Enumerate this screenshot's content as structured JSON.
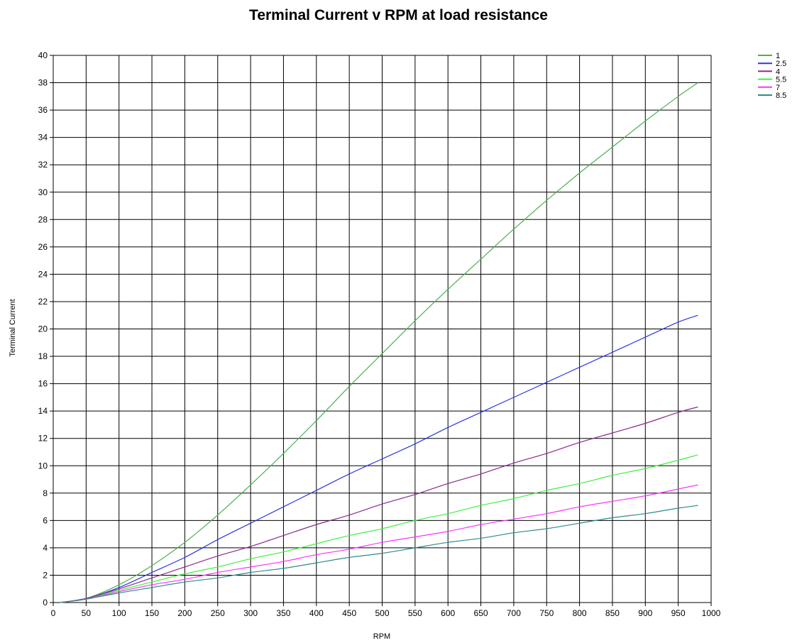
{
  "chart_data": {
    "type": "line",
    "title": "Terminal Current v RPM at load resistance",
    "xlabel": "RPM",
    "ylabel": "Terminal Current",
    "xlim": [
      0,
      1000
    ],
    "ylim": [
      0,
      40
    ],
    "xticks": [
      0,
      50,
      100,
      150,
      200,
      250,
      300,
      350,
      400,
      450,
      500,
      550,
      600,
      650,
      700,
      750,
      800,
      850,
      900,
      950,
      1000
    ],
    "yticks": [
      0,
      2,
      4,
      6,
      8,
      10,
      12,
      14,
      16,
      18,
      20,
      22,
      24,
      26,
      28,
      30,
      32,
      34,
      36,
      38,
      40
    ],
    "grid": true,
    "legend_position": "top-right",
    "x": [
      10,
      50,
      100,
      150,
      200,
      250,
      300,
      350,
      400,
      450,
      500,
      550,
      600,
      650,
      700,
      750,
      800,
      850,
      900,
      950,
      980
    ],
    "series": [
      {
        "name": "1",
        "color": "#4caf50",
        "values": [
          0.0,
          0.3,
          1.3,
          2.7,
          4.4,
          6.4,
          8.6,
          10.9,
          13.3,
          15.8,
          18.2,
          20.6,
          22.9,
          25.1,
          27.3,
          29.4,
          31.4,
          33.3,
          35.2,
          37.0,
          38.0
        ]
      },
      {
        "name": "2.5",
        "color": "#2b35e6",
        "values": [
          0.0,
          0.3,
          1.1,
          2.2,
          3.3,
          4.6,
          5.8,
          7.0,
          8.2,
          9.4,
          10.5,
          11.6,
          12.8,
          13.9,
          15.0,
          16.1,
          17.2,
          18.3,
          19.4,
          20.5,
          21.0
        ]
      },
      {
        "name": "4",
        "color": "#8b2a8b",
        "values": [
          0.0,
          0.3,
          1.0,
          1.8,
          2.6,
          3.4,
          4.1,
          4.9,
          5.7,
          6.4,
          7.2,
          7.9,
          8.7,
          9.4,
          10.2,
          10.9,
          11.7,
          12.4,
          13.1,
          13.9,
          14.3
        ]
      },
      {
        "name": "5.5",
        "color": "#3ef03e",
        "values": [
          0.0,
          0.25,
          0.9,
          1.5,
          2.1,
          2.6,
          3.2,
          3.7,
          4.3,
          4.9,
          5.4,
          6.0,
          6.5,
          7.1,
          7.6,
          8.2,
          8.7,
          9.3,
          9.8,
          10.4,
          10.8
        ]
      },
      {
        "name": "7",
        "color": "#ff33ff",
        "values": [
          0.0,
          0.25,
          0.8,
          1.3,
          1.7,
          2.2,
          2.6,
          3.0,
          3.5,
          3.9,
          4.4,
          4.8,
          5.2,
          5.7,
          6.1,
          6.5,
          7.0,
          7.4,
          7.8,
          8.3,
          8.6
        ]
      },
      {
        "name": "8.5",
        "color": "#2e8b8b",
        "values": [
          0.0,
          0.25,
          0.7,
          1.1,
          1.5,
          1.8,
          2.2,
          2.5,
          2.9,
          3.3,
          3.6,
          4.0,
          4.4,
          4.7,
          5.1,
          5.4,
          5.8,
          6.2,
          6.5,
          6.9,
          7.1
        ]
      }
    ]
  }
}
